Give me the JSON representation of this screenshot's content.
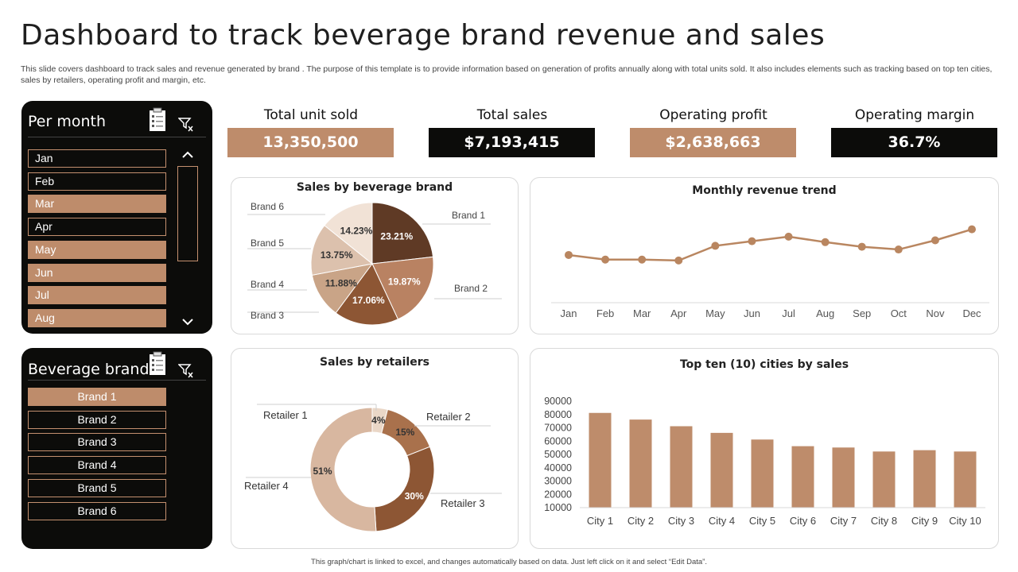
{
  "page": {
    "title": "Dashboard to track beverage brand revenue and sales",
    "description": "This slide covers dashboard to track sales and revenue generated by brand .  The purpose of this template is to provide information based on generation of profits annually along with total units sold. It also includes elements such as tracking based on top ten cities, sales by retailers, operating profit and margin, etc.",
    "footer": "This graph/chart is linked to excel, and changes automatically based on data. Just left click on it and select “Edit Data”."
  },
  "month_slicer": {
    "title": "Per month",
    "items": [
      {
        "label": "Jan",
        "selected": false
      },
      {
        "label": "Feb",
        "selected": false
      },
      {
        "label": "Mar",
        "selected": true
      },
      {
        "label": "Apr",
        "selected": false
      },
      {
        "label": "May",
        "selected": true
      },
      {
        "label": "Jun",
        "selected": true
      },
      {
        "label": "Jul",
        "selected": true
      },
      {
        "label": "Aug",
        "selected": true
      }
    ]
  },
  "brand_slicer": {
    "title": "Beverage brand",
    "items": [
      {
        "label": "Brand 1",
        "selected": true
      },
      {
        "label": "Brand 2",
        "selected": false
      },
      {
        "label": "Brand 3",
        "selected": false
      },
      {
        "label": "Brand 4",
        "selected": false
      },
      {
        "label": "Brand 5",
        "selected": false
      },
      {
        "label": "Brand 6",
        "selected": false
      }
    ]
  },
  "kpis": [
    {
      "label": "Total unit sold",
      "value": "13,350,500"
    },
    {
      "label": "Total sales",
      "value": "$7,193,415"
    },
    {
      "label": "Operating profit",
      "value": "$2,638,663"
    },
    {
      "label": "Operating margin",
      "value": "36.7%"
    }
  ],
  "colors": {
    "tan": "#be8c6b",
    "dark": "#0c0c0a",
    "line": "#b98660",
    "bar": "#be8c6b"
  },
  "chart_data": [
    {
      "type": "pie",
      "title": "Sales by beverage brand",
      "labels": [
        "Brand 1",
        "Brand 2",
        "Brand 3",
        "Brand 4",
        "Brand 5",
        "Brand 6"
      ],
      "values": [
        23.21,
        19.87,
        17.06,
        11.88,
        13.75,
        14.23
      ],
      "value_labels": [
        "23.21%",
        "19.87%",
        "17.06%",
        "11.88%",
        "13.75%",
        "14.23%"
      ],
      "colors": [
        "#5f3a25",
        "#b98262",
        "#8d5634",
        "#c9a487",
        "#dcc1ad",
        "#f1e2d6"
      ]
    },
    {
      "type": "line",
      "title": "Monthly revenue trend",
      "categories": [
        "Jan",
        "Feb",
        "Mar",
        "Apr",
        "May",
        "Jun",
        "Jul",
        "Aug",
        "Sep",
        "Oct",
        "Nov",
        "Dec"
      ],
      "values": [
        52,
        47,
        47,
        46,
        62,
        67,
        72,
        66,
        61,
        58,
        68,
        80
      ],
      "ylim": [
        0,
        110
      ]
    },
    {
      "type": "donut",
      "title": "Sales by retailers",
      "labels": [
        "Retailer 1",
        "Retailer 2",
        "Retailer 3",
        "Retailer 4"
      ],
      "values": [
        4,
        15,
        30,
        51
      ],
      "value_labels": [
        "4%",
        "15%",
        "30%",
        "51%"
      ],
      "colors": [
        "#ead7c7",
        "#a9714c",
        "#8d5634",
        "#d8b7a0"
      ]
    },
    {
      "type": "bar",
      "title": "Top ten (10) cities by sales",
      "categories": [
        "City 1",
        "City 2",
        "City 3",
        "City 4",
        "City 5",
        "City 6",
        "City 7",
        "City 8",
        "City 9",
        "City 10"
      ],
      "values": [
        80000,
        75000,
        70000,
        65000,
        60000,
        55000,
        54000,
        51000,
        52000,
        51000
      ],
      "yticks": [
        "90000",
        "80000",
        "70000",
        "60000",
        "50000",
        "40000",
        "30000",
        "20000",
        "10000"
      ],
      "ylim": [
        10000,
        90000
      ]
    }
  ]
}
